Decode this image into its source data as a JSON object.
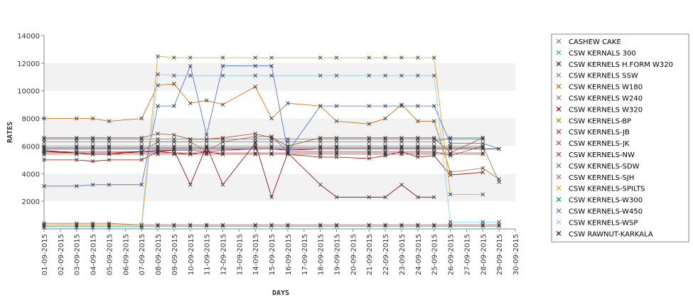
{
  "chart_data": {
    "type": "line",
    "xlabel": "DAYS",
    "ylabel": "RATES",
    "ylim": [
      0,
      14000
    ],
    "yticks": [
      2000,
      4000,
      6000,
      8000,
      10000,
      12000,
      14000
    ],
    "x": [
      "01-09-2015",
      "02-09-2015",
      "03-09-2015",
      "04-09-2015",
      "05-09-2015",
      "06-09-2015",
      "07-09-2015",
      "08-09-2015",
      "09-09-2015",
      "10-09-2015",
      "11-09-2015",
      "12-09-2015",
      "13-09-2015",
      "14-09-2015",
      "15-09-2015",
      "16-09-2015",
      "17-09-2015",
      "18-09-2015",
      "19-09-2015",
      "20-09-2015",
      "21-09-2015",
      "22-09-2015",
      "23-09-2015",
      "24-09-2015",
      "25-09-2015",
      "26-09-2015",
      "27-09-2015",
      "28-09-2015",
      "29-09-2015",
      "30-09-2015"
    ],
    "grid": "alternating horizontal bands",
    "legend_position": "right",
    "series": [
      {
        "name": "CASHEW CAKE",
        "color": "#4682b4",
        "values": [
          6000,
          null,
          6000,
          6000,
          6000,
          null,
          6000,
          6000,
          6000,
          6000,
          6000,
          6000,
          null,
          6000,
          6000,
          6000,
          null,
          6000,
          6000,
          null,
          6000,
          6000,
          6000,
          6000,
          6000,
          6000,
          null,
          6000,
          null,
          null
        ]
      },
      {
        "name": "CSW KERNALS 300",
        "color": "#20b2aa",
        "values": [
          6300,
          null,
          6300,
          6300,
          6300,
          null,
          6300,
          6300,
          6300,
          6300,
          6300,
          6300,
          null,
          6300,
          6300,
          6300,
          null,
          6300,
          6300,
          null,
          6300,
          6300,
          6300,
          6300,
          6300,
          6600,
          null,
          6600,
          null,
          null
        ]
      },
      {
        "name": "CSW KERNELS H.FORM W320",
        "color": "#4b0082",
        "values": [
          5800,
          null,
          5800,
          5800,
          5800,
          null,
          5800,
          5800,
          5800,
          5800,
          5800,
          5800,
          null,
          5800,
          5800,
          5800,
          null,
          5800,
          5800,
          null,
          5800,
          5800,
          5800,
          5800,
          5800,
          5800,
          null,
          5800,
          5800,
          null
        ]
      },
      {
        "name": "CSW KERNELS SSW",
        "color": "#808080",
        "values": [
          6500,
          null,
          6500,
          6500,
          6500,
          null,
          6500,
          6500,
          6500,
          6500,
          6500,
          6500,
          null,
          6500,
          6500,
          6500,
          null,
          6500,
          6500,
          null,
          6500,
          6500,
          6500,
          6500,
          6500,
          6500,
          null,
          6500,
          null,
          null
        ]
      },
      {
        "name": "CSW KERNELS W180",
        "color": "#cc6600",
        "values": [
          8000,
          null,
          8000,
          8000,
          7800,
          null,
          8000,
          10400,
          10500,
          9100,
          9300,
          9000,
          null,
          10300,
          8000,
          9100,
          null,
          8900,
          7800,
          null,
          7600,
          8000,
          9000,
          7800,
          7800,
          4100,
          null,
          4400,
          3600,
          null
        ]
      },
      {
        "name": "CSW KERNELS W240",
        "color": "#8b7355",
        "values": [
          5600,
          null,
          5600,
          5600,
          5600,
          null,
          5600,
          6300,
          6300,
          6300,
          5600,
          6300,
          null,
          6700,
          6700,
          5600,
          null,
          5600,
          5600,
          null,
          5600,
          5600,
          5600,
          5600,
          5600,
          5300,
          null,
          6000,
          3400,
          null
        ]
      },
      {
        "name": "CSW KERNELS W320",
        "color": "#990000",
        "values": [
          5000,
          null,
          5000,
          4900,
          5000,
          null,
          5000,
          5600,
          5500,
          5400,
          5600,
          5400,
          null,
          5400,
          5400,
          5400,
          null,
          5200,
          5200,
          null,
          5100,
          5300,
          5600,
          5200,
          5300,
          3900,
          null,
          4100,
          null,
          null
        ]
      },
      {
        "name": "CSW KERNELS-BP",
        "color": "#b8860b",
        "values": [
          5400,
          null,
          5400,
          5400,
          5400,
          null,
          5400,
          5400,
          5400,
          5400,
          5400,
          5400,
          null,
          5400,
          5400,
          5400,
          null,
          5400,
          5400,
          null,
          5400,
          5400,
          5400,
          5400,
          5400,
          5400,
          null,
          5400,
          null,
          null
        ]
      },
      {
        "name": "CSW KERNELS-JB",
        "color": "#c71585",
        "values": [
          5500,
          null,
          5500,
          5500,
          5500,
          null,
          5500,
          5500,
          5500,
          5500,
          5500,
          5500,
          null,
          5500,
          5500,
          5500,
          null,
          5500,
          5500,
          null,
          5500,
          5500,
          5500,
          5500,
          5500,
          5500,
          null,
          5500,
          null,
          null
        ]
      },
      {
        "name": "CSW KERNELS-JK",
        "color": "#a0522d",
        "values": [
          6600,
          null,
          6600,
          6600,
          6600,
          null,
          6600,
          6900,
          6800,
          6500,
          6500,
          6600,
          null,
          6900,
          6600,
          6000,
          null,
          6600,
          6600,
          null,
          6600,
          6600,
          6600,
          6600,
          6600,
          5500,
          null,
          6600,
          null,
          null
        ]
      },
      {
        "name": "CSW KERNELS-NW",
        "color": "#dc143c",
        "values": [
          5700,
          null,
          5500,
          5500,
          5500,
          null,
          5600,
          5700,
          5700,
          5700,
          5600,
          5700,
          null,
          5800,
          5800,
          5700,
          null,
          5800,
          5800,
          null,
          5800,
          5800,
          5800,
          5800,
          5800,
          5800,
          null,
          5800,
          null,
          null
        ]
      },
      {
        "name": "CSW KERNELS-SDW",
        "color": "#2e8b57",
        "values": [
          5900,
          null,
          5900,
          5900,
          5900,
          null,
          5900,
          5900,
          5900,
          5900,
          5900,
          5900,
          null,
          5900,
          5900,
          5900,
          null,
          5900,
          5900,
          null,
          5900,
          5900,
          5900,
          5900,
          5900,
          5900,
          null,
          5900,
          null,
          null
        ]
      },
      {
        "name": "CSW KERNELS-SJH",
        "color": "#cd5c5c",
        "values": [
          400,
          null,
          400,
          400,
          400,
          null,
          300,
          300,
          300,
          300,
          300,
          300,
          null,
          300,
          300,
          300,
          null,
          300,
          300,
          null,
          300,
          300,
          300,
          300,
          300,
          300,
          null,
          300,
          300,
          null
        ]
      },
      {
        "name": "CSW KERNELS-SPILTS",
        "color": "#daa520",
        "values": [
          300,
          null,
          300,
          300,
          300,
          null,
          300,
          12500,
          12400,
          12400,
          null,
          12400,
          null,
          12400,
          12400,
          null,
          null,
          12400,
          12400,
          null,
          12400,
          12400,
          12400,
          12400,
          12400,
          2500,
          null,
          2500,
          null,
          null
        ]
      },
      {
        "name": "CSW KERNELS-W300",
        "color": "#008b8b",
        "values": [
          200,
          null,
          200,
          200,
          200,
          null,
          200,
          200,
          200,
          200,
          200,
          200,
          null,
          200,
          200,
          200,
          null,
          200,
          200,
          null,
          200,
          200,
          200,
          200,
          200,
          200,
          null,
          200,
          200,
          null
        ]
      },
      {
        "name": "CSW KERNELS-W450",
        "color": "#4169e1",
        "values": [
          3100,
          null,
          3100,
          3200,
          3200,
          null,
          3200,
          8900,
          8900,
          11800,
          6800,
          11800,
          null,
          11800,
          11800,
          5600,
          null,
          8900,
          8900,
          null,
          8900,
          8900,
          8900,
          8900,
          8900,
          6200,
          null,
          6200,
          5800,
          null
        ]
      },
      {
        "name": "CSW KERNELS-WSP",
        "color": "#87ceeb",
        "values": [
          100,
          null,
          100,
          100,
          100,
          null,
          100,
          11200,
          11100,
          11100,
          null,
          11100,
          null,
          11100,
          11100,
          null,
          null,
          11100,
          11100,
          null,
          11100,
          11100,
          11100,
          11100,
          11100,
          500,
          null,
          500,
          500,
          null
        ]
      },
      {
        "name": "CSW RAWNUT-KARKALA",
        "color": "#800000",
        "values": [
          5600,
          null,
          5500,
          5400,
          5400,
          null,
          5600,
          5600,
          5700,
          3200,
          6000,
          3200,
          null,
          6200,
          2300,
          5500,
          null,
          3200,
          2300,
          null,
          2300,
          2300,
          3200,
          2300,
          2300,
          null,
          null,
          null,
          null,
          null
        ]
      }
    ]
  }
}
